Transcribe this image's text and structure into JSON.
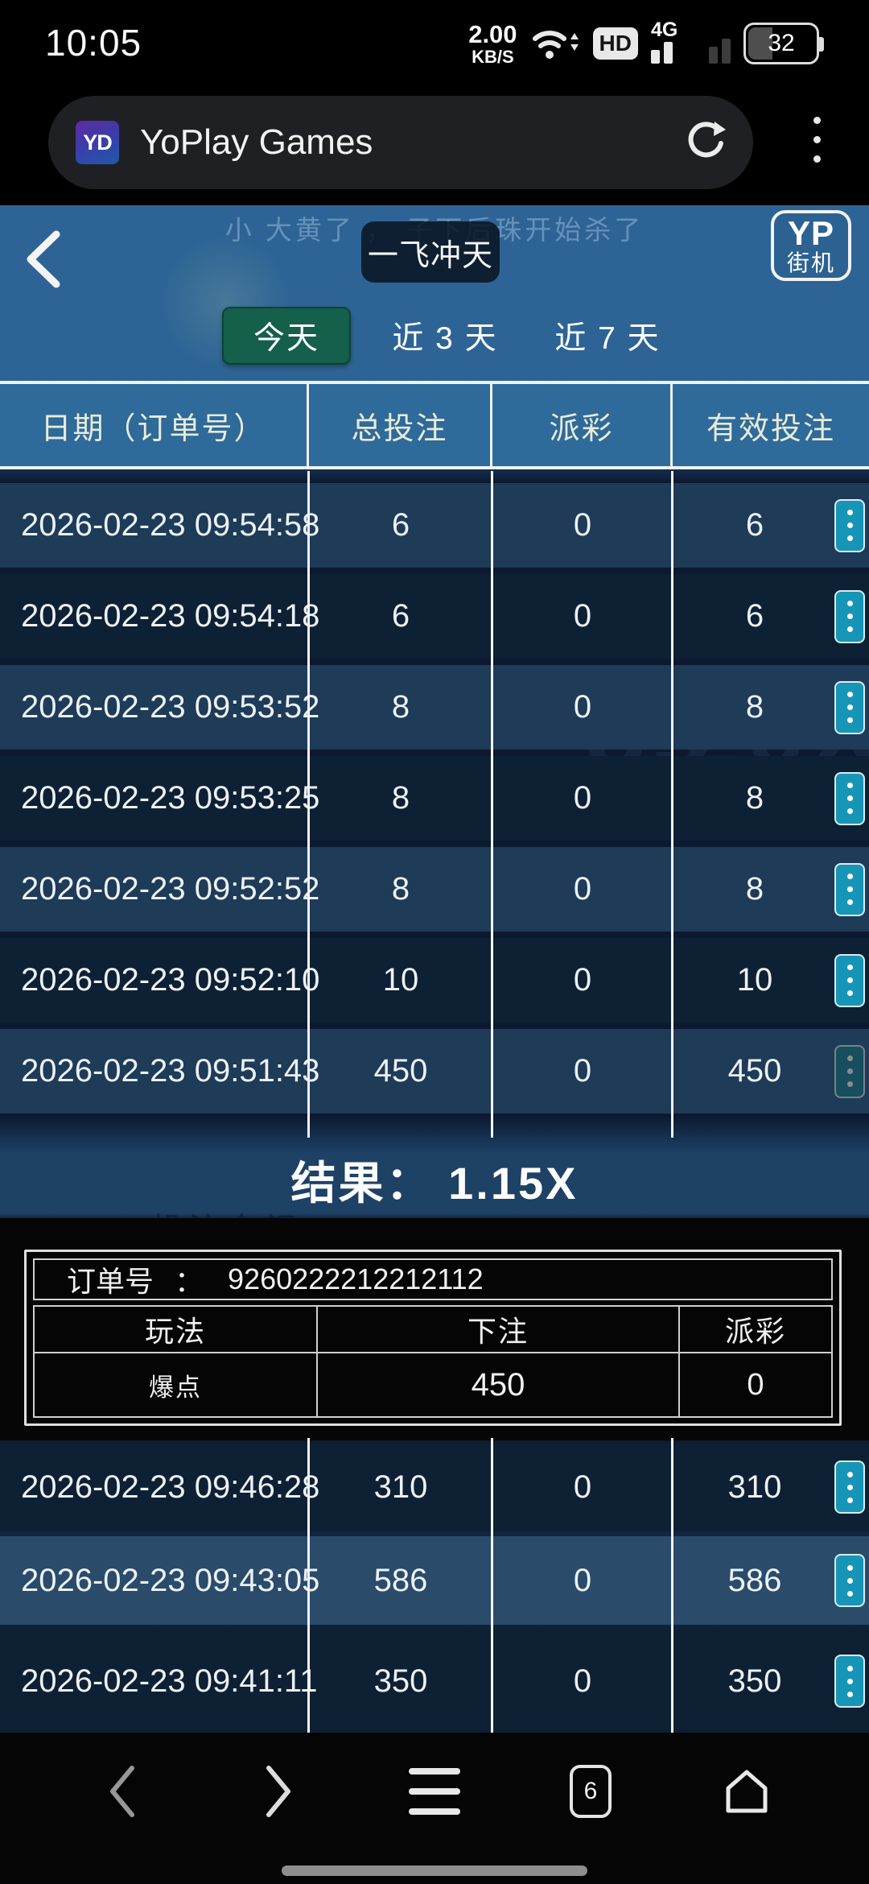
{
  "status_bar": {
    "time": "10:05",
    "net_speed_value": "2.00",
    "net_speed_unit": "KB/S",
    "hd_label": "HD",
    "network_label": "4G",
    "battery_percent": "32"
  },
  "browser": {
    "favicon_text": "YD",
    "title": "YoPlay Games"
  },
  "game": {
    "title": "一飞冲天",
    "logo_top": "YP",
    "logo_bottom": "街机",
    "chat_text": "小 大黄了 ， 子下后珠开始杀了",
    "watermark": "8.20X",
    "faint_label": "投注金额"
  },
  "tabs": [
    {
      "label": "今天",
      "name": "tab-today",
      "active": true
    },
    {
      "label": "近 3 天",
      "name": "tab-last-3-days",
      "active": false
    },
    {
      "label": "近 7 天",
      "name": "tab-last-7-days",
      "active": false
    }
  ],
  "table": {
    "headers": [
      "日期（订单号）",
      "总投注",
      "派彩",
      "有效投注"
    ],
    "rows_top": [
      {
        "date": "2026-02-23 09:54:58",
        "total": "6",
        "payout": "0",
        "valid": "6"
      },
      {
        "date": "2026-02-23 09:54:18",
        "total": "6",
        "payout": "0",
        "valid": "6"
      },
      {
        "date": "2026-02-23 09:53:52",
        "total": "8",
        "payout": "0",
        "valid": "8"
      },
      {
        "date": "2026-02-23 09:53:25",
        "total": "8",
        "payout": "0",
        "valid": "8"
      },
      {
        "date": "2026-02-23 09:52:52",
        "total": "8",
        "payout": "0",
        "valid": "8"
      },
      {
        "date": "2026-02-23 09:52:10",
        "total": "10",
        "payout": "0",
        "valid": "10"
      },
      {
        "date": "2026-02-23 09:51:43",
        "total": "450",
        "payout": "0",
        "valid": "450",
        "dimmed": true
      }
    ],
    "result_label": "结果：",
    "result_value": "1.15X",
    "rows_bottom": [
      {
        "date": "2026-02-23 09:46:28",
        "total": "310",
        "payout": "0",
        "valid": "310"
      },
      {
        "date": "2026-02-23 09:43:05",
        "total": "586",
        "payout": "0",
        "valid": "586"
      },
      {
        "date": "2026-02-23 09:41:11",
        "total": "350",
        "payout": "0",
        "valid": "350"
      }
    ]
  },
  "order_detail": {
    "order_label": "订单号",
    "colon": "：",
    "order_number": "9260222212212112",
    "headers": [
      "玩法",
      "下注",
      "派彩"
    ],
    "row": [
      "爆点",
      "450",
      "0"
    ]
  },
  "bottom_nav": {
    "tab_count": "6"
  },
  "colors": {
    "accent_teal_button": "#1795B6",
    "active_tab_green": "#14604A",
    "table_header_blue": "#2E6A9A",
    "row_light": "#1E3B57",
    "row_dark": "#0E2134",
    "row_highlight": "#2B4B6A"
  }
}
